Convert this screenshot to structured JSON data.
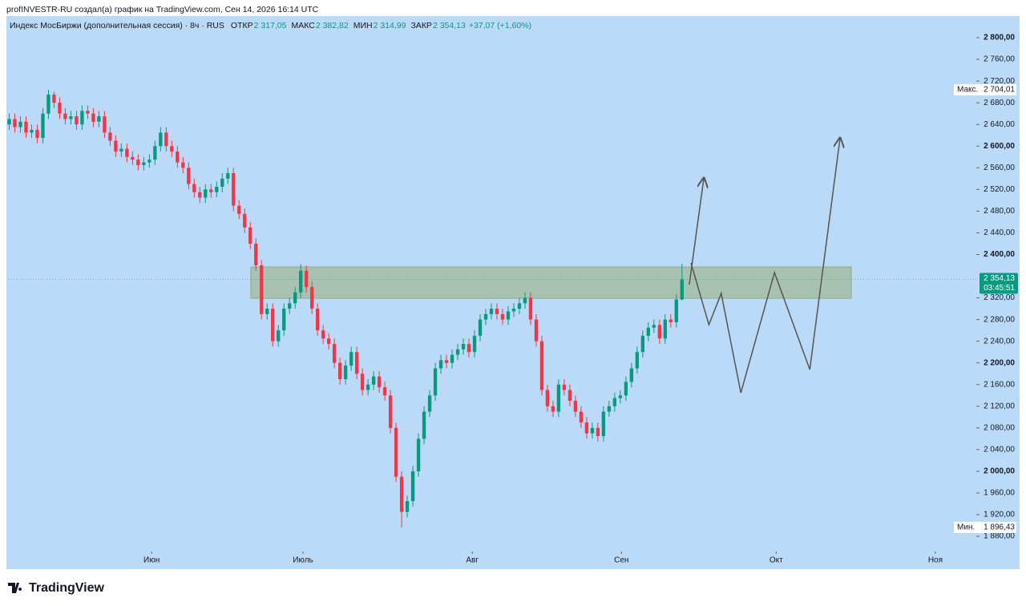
{
  "header": {
    "author_line": "profINVESTR-RU создал(а) график на TradingView.com, Сен 14, 2026 16:14 UTC"
  },
  "legend": {
    "symbol": "Индекс МосБиржи (дополнительная сессия) · 8ч · RUS",
    "items": [
      {
        "name": "ОТКР",
        "value": "2 317,05"
      },
      {
        "name": "МАКС",
        "value": "2 382,82"
      },
      {
        "name": "МИН",
        "value": "2 314,99"
      },
      {
        "name": "ЗАКР",
        "value": "2 354,13"
      }
    ],
    "change": "+37,07 (+1,60%)"
  },
  "footer": {
    "logo": "TradingView"
  },
  "chart_data": {
    "type": "candlestick",
    "up_color": "#089981",
    "down_color": "#f23645",
    "xlim": [
      -0.5,
      172.5
    ],
    "ylim": [
      1852,
      2840
    ],
    "xticks": [
      {
        "value": 25.4,
        "label": "Июн"
      },
      {
        "value": 52.4,
        "label": "Июль"
      },
      {
        "value": 82.6,
        "label": "Авг"
      },
      {
        "value": 109.2,
        "label": "Сен"
      },
      {
        "value": 136.8,
        "label": "Окт"
      },
      {
        "value": 165.2,
        "label": "Ноя"
      }
    ],
    "yticks": [
      {
        "value": 2800,
        "label": "2 800,00"
      },
      {
        "value": 2760,
        "label": "2 760,00"
      },
      {
        "value": 2720,
        "label": "2 720,00"
      },
      {
        "value": 2680,
        "label": "2 680,00"
      },
      {
        "value": 2640,
        "label": "2 640,00"
      },
      {
        "value": 2600,
        "label": "2 600,00"
      },
      {
        "value": 2560,
        "label": "2 560,00"
      },
      {
        "value": 2520,
        "label": "2 520,00"
      },
      {
        "value": 2480,
        "label": "2 480,00"
      },
      {
        "value": 2440,
        "label": "2 440,00"
      },
      {
        "value": 2400,
        "label": "2 400,00"
      },
      {
        "value": 2320,
        "label": "2 320,00"
      },
      {
        "value": 2280,
        "label": "2 280,00"
      },
      {
        "value": 2240,
        "label": "2 240,00"
      },
      {
        "value": 2200,
        "label": "2 200,00"
      },
      {
        "value": 2160,
        "label": "2 160,00"
      },
      {
        "value": 2120,
        "label": "2 120,00"
      },
      {
        "value": 2080,
        "label": "2 080,00"
      },
      {
        "value": 2040,
        "label": "2 040,00"
      },
      {
        "value": 2000,
        "label": "2 000,00"
      },
      {
        "value": 1960,
        "label": "1 960,00"
      },
      {
        "value": 1920,
        "label": "1 920,00"
      },
      {
        "value": 1880,
        "label": "1 880,00"
      }
    ],
    "open": [
      2640,
      2650,
      2635,
      2645,
      2625,
      2630,
      2615,
      2660,
      2695,
      2680,
      2660,
      2650,
      2655,
      2640,
      2665,
      2660,
      2645,
      2655,
      2625,
      2610,
      2590,
      2595,
      2580,
      2575,
      2565,
      2570,
      2575,
      2600,
      2625,
      2600,
      2590,
      2570,
      2560,
      2530,
      2515,
      2505,
      2520,
      2515,
      2525,
      2540,
      2550,
      2490,
      2475,
      2450,
      2420,
      2380,
      2290,
      2300,
      2240,
      2260,
      2300,
      2310,
      2330,
      2370,
      2340,
      2300,
      2260,
      2245,
      2235,
      2200,
      2170,
      2195,
      2220,
      2180,
      2150,
      2160,
      2175,
      2155,
      2140,
      2080,
      1990,
      1925,
      1945,
      2000,
      2060,
      2110,
      2140,
      2190,
      2205,
      2200,
      2215,
      2225,
      2235,
      2220,
      2250,
      2280,
      2290,
      2300,
      2290,
      2280,
      2295,
      2300,
      2310,
      2320,
      2280,
      2240,
      2150,
      2120,
      2110,
      2160,
      2150,
      2130,
      2110,
      2090,
      2070,
      2080,
      2065,
      2110,
      2120,
      2135,
      2140,
      2165,
      2190,
      2220,
      2250,
      2265,
      2270,
      2245,
      2280,
      2275,
      2317.05
    ],
    "high": [
      2660,
      2660,
      2655,
      2655,
      2640,
      2640,
      2670,
      2704.01,
      2700,
      2690,
      2670,
      2665,
      2665,
      2675,
      2675,
      2670,
      2665,
      2665,
      2635,
      2620,
      2605,
      2605,
      2590,
      2585,
      2580,
      2585,
      2610,
      2635,
      2635,
      2610,
      2600,
      2580,
      2570,
      2540,
      2525,
      2530,
      2530,
      2535,
      2550,
      2560,
      2560,
      2500,
      2485,
      2460,
      2430,
      2390,
      2310,
      2310,
      2270,
      2310,
      2320,
      2340,
      2382,
      2380,
      2350,
      2310,
      2270,
      2255,
      2245,
      2210,
      2205,
      2230,
      2230,
      2190,
      2170,
      2185,
      2185,
      2165,
      2150,
      2090,
      2000,
      1955,
      2010,
      2070,
      2120,
      2150,
      2200,
      2215,
      2215,
      2225,
      2235,
      2245,
      2245,
      2260,
      2290,
      2300,
      2310,
      2310,
      2300,
      2305,
      2310,
      2320,
      2330,
      2330,
      2290,
      2250,
      2160,
      2130,
      2170,
      2170,
      2160,
      2140,
      2120,
      2100,
      2090,
      2090,
      2120,
      2130,
      2145,
      2150,
      2175,
      2200,
      2230,
      2260,
      2275,
      2280,
      2280,
      2290,
      2290,
      2327,
      2382.82
    ],
    "low": [
      2630,
      2625,
      2625,
      2615,
      2615,
      2605,
      2605,
      2650,
      2670,
      2650,
      2640,
      2640,
      2630,
      2630,
      2650,
      2635,
      2635,
      2615,
      2600,
      2580,
      2580,
      2570,
      2565,
      2555,
      2555,
      2560,
      2565,
      2590,
      2590,
      2580,
      2560,
      2550,
      2520,
      2505,
      2495,
      2495,
      2505,
      2505,
      2515,
      2530,
      2480,
      2465,
      2440,
      2410,
      2370,
      2280,
      2280,
      2230,
      2230,
      2250,
      2290,
      2300,
      2320,
      2330,
      2290,
      2250,
      2235,
      2225,
      2190,
      2160,
      2160,
      2185,
      2170,
      2140,
      2140,
      2150,
      2145,
      2130,
      2070,
      1980,
      1896.43,
      1915,
      1935,
      1990,
      2050,
      2100,
      2130,
      2180,
      2190,
      2190,
      2205,
      2215,
      2210,
      2210,
      2240,
      2270,
      2280,
      2280,
      2270,
      2270,
      2285,
      2290,
      2300,
      2270,
      2230,
      2140,
      2110,
      2100,
      2100,
      2140,
      2120,
      2100,
      2080,
      2060,
      2060,
      2055,
      2055,
      2100,
      2110,
      2125,
      2130,
      2155,
      2180,
      2210,
      2240,
      2255,
      2235,
      2235,
      2265,
      2265,
      2314.99
    ],
    "close": [
      2650,
      2635,
      2645,
      2625,
      2630,
      2615,
      2660,
      2695,
      2680,
      2660,
      2650,
      2655,
      2640,
      2665,
      2660,
      2645,
      2655,
      2625,
      2610,
      2590,
      2595,
      2580,
      2575,
      2565,
      2570,
      2575,
      2600,
      2625,
      2600,
      2590,
      2570,
      2560,
      2530,
      2515,
      2505,
      2520,
      2515,
      2525,
      2540,
      2550,
      2490,
      2475,
      2450,
      2420,
      2380,
      2290,
      2300,
      2240,
      2260,
      2300,
      2310,
      2330,
      2370,
      2340,
      2300,
      2260,
      2245,
      2235,
      2200,
      2170,
      2195,
      2220,
      2180,
      2150,
      2160,
      2175,
      2155,
      2140,
      2080,
      1990,
      1925,
      1945,
      2000,
      2060,
      2110,
      2140,
      2190,
      2205,
      2200,
      2215,
      2225,
      2235,
      2220,
      2250,
      2280,
      2290,
      2300,
      2290,
      2280,
      2295,
      2300,
      2310,
      2320,
      2280,
      2240,
      2150,
      2120,
      2110,
      2160,
      2150,
      2130,
      2110,
      2090,
      2070,
      2080,
      2065,
      2110,
      2120,
      2135,
      2140,
      2165,
      2190,
      2220,
      2250,
      2265,
      2270,
      2245,
      2280,
      2275,
      2317.05,
      2354.13
    ],
    "last_price": {
      "value": 2354.13,
      "label": "2 354,13",
      "timer": "03:45:51"
    },
    "max_marker": {
      "name": "Макс.",
      "value": 2704.01,
      "label": "2 704,01"
    },
    "min_marker": {
      "name": "Мин.",
      "value": 1896.43,
      "label": "1 896,43"
    },
    "zone": {
      "xlim": [
        43.1,
        150.2
      ],
      "ylim": [
        2319.2,
        2377
      ]
    },
    "drawings": [
      {
        "points": [
          [
            121.3,
            2344.4
          ],
          [
            123.9,
            2541.2
          ]
        ]
      },
      {
        "points": [
          [
            121.6,
            2384.4
          ],
          [
            124.8,
            2270.5
          ],
          [
            127.0,
            2328.2
          ],
          [
            130.5,
            2144.8
          ],
          [
            136.5,
            2366.6
          ],
          [
            142.8,
            2187.7
          ],
          [
            148.2,
            2615.1
          ]
        ]
      }
    ]
  }
}
